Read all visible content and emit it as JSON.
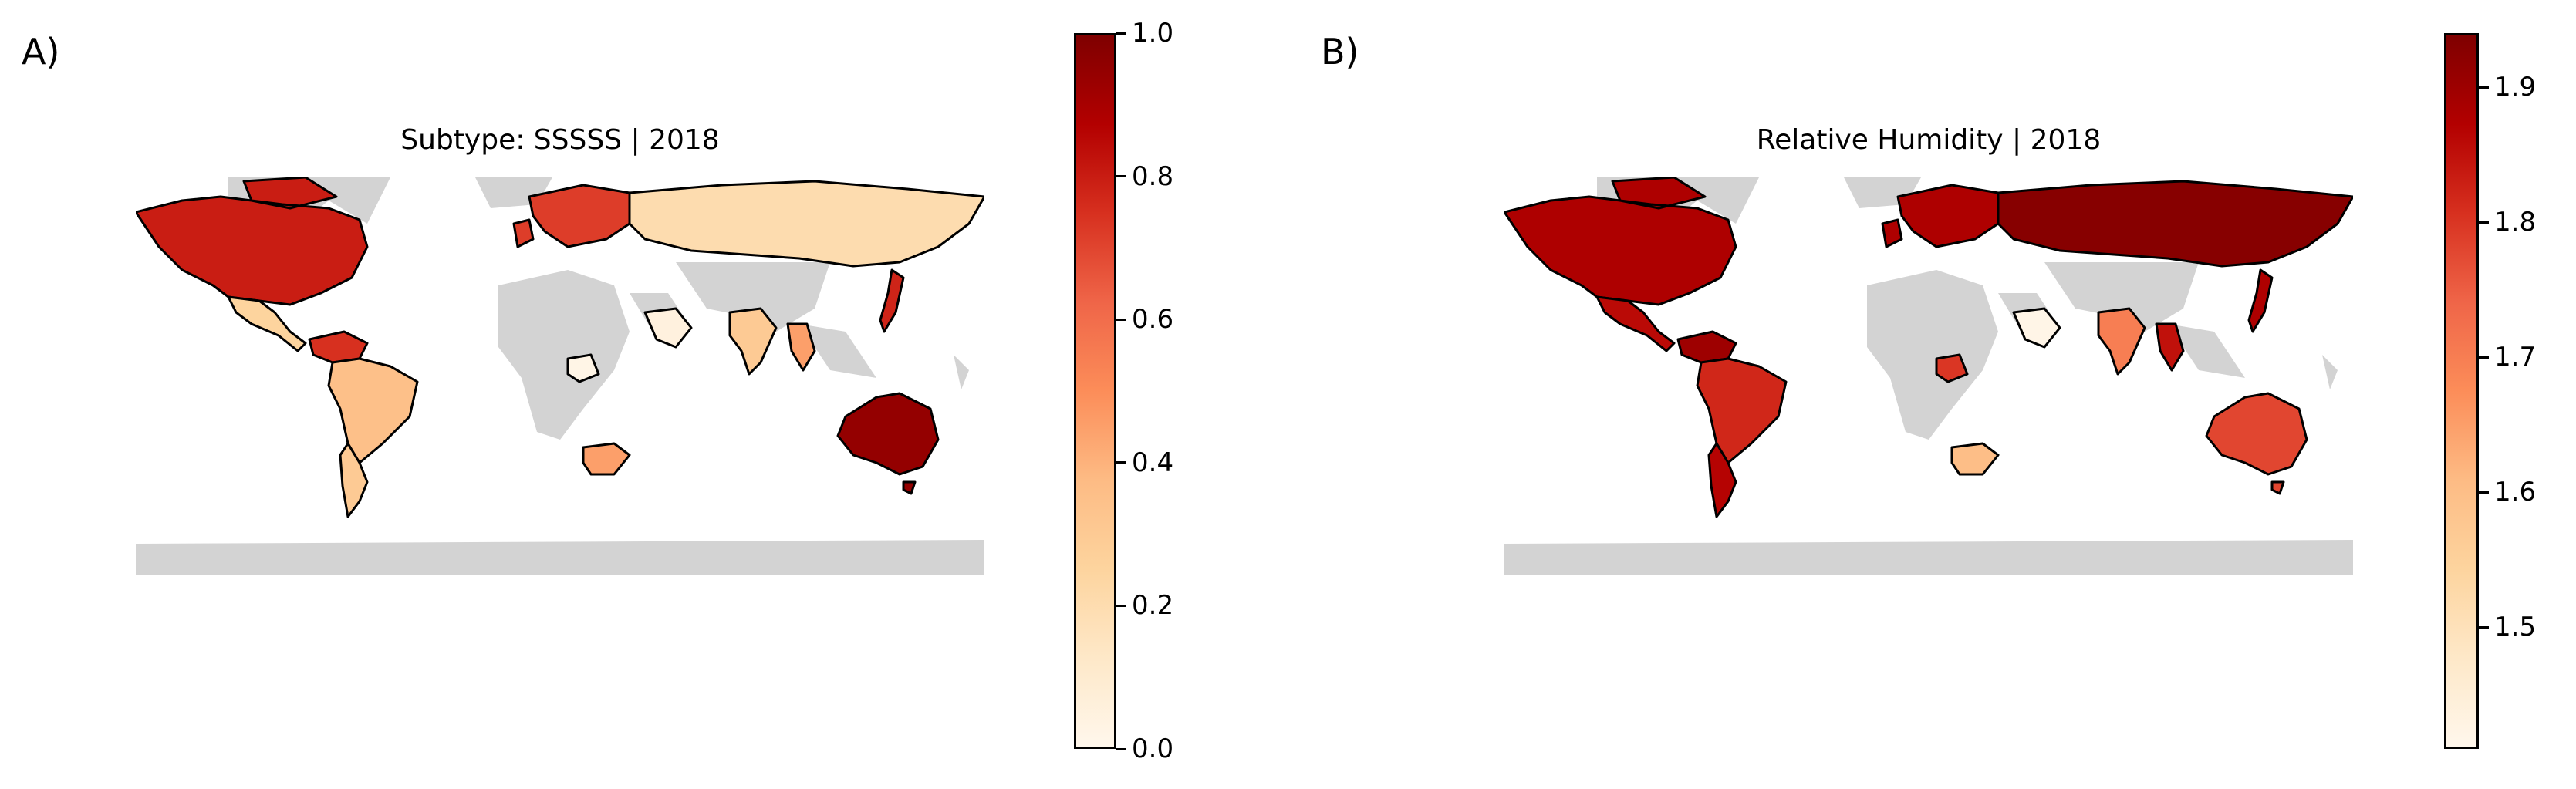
{
  "panels": [
    {
      "letter": "A)",
      "title": "Subtype: SSSSS | 2018",
      "colorbar": {
        "min": 0.0,
        "max": 1.0,
        "ticks": [
          "0.0",
          "0.2",
          "0.4",
          "0.6",
          "0.8",
          "1.0"
        ],
        "tick_values": [
          0.0,
          0.2,
          0.4,
          0.6,
          0.8,
          1.0
        ],
        "colormap": "OrRd"
      },
      "regions": [
        {
          "name": "North America",
          "value": 0.8
        },
        {
          "name": "Mexico & Central America",
          "value": 0.25
        },
        {
          "name": "Northern South America",
          "value": 0.75
        },
        {
          "name": "South America",
          "value": 0.35
        },
        {
          "name": "Southern South America",
          "value": 0.3
        },
        {
          "name": "Europe",
          "value": 0.72
        },
        {
          "name": "Russia",
          "value": 0.2
        },
        {
          "name": "Arabian Peninsula",
          "value": 0.05
        },
        {
          "name": "India",
          "value": 0.3
        },
        {
          "name": "Southeast Asia",
          "value": 0.45
        },
        {
          "name": "Japan",
          "value": 0.78
        },
        {
          "name": "Central Africa",
          "value": 0.02
        },
        {
          "name": "Southern Africa",
          "value": 0.45
        },
        {
          "name": "Australia",
          "value": 0.95
        }
      ]
    },
    {
      "letter": "B)",
      "title": "Relative Humidity | 2018",
      "colorbar": {
        "min": 1.41,
        "max": 1.94,
        "ticks": [
          "1.5",
          "1.6",
          "1.7",
          "1.8",
          "1.9"
        ],
        "tick_values": [
          1.5,
          1.6,
          1.7,
          1.8,
          1.9
        ],
        "colormap": "OrRd"
      },
      "regions": [
        {
          "name": "North America",
          "value": 1.88
        },
        {
          "name": "Mexico & Central America",
          "value": 1.86
        },
        {
          "name": "Northern South America",
          "value": 1.9
        },
        {
          "name": "South America",
          "value": 1.82
        },
        {
          "name": "Southern South America",
          "value": 1.87
        },
        {
          "name": "Europe",
          "value": 1.88
        },
        {
          "name": "Russia",
          "value": 1.93
        },
        {
          "name": "Arabian Peninsula",
          "value": 1.42
        },
        {
          "name": "India",
          "value": 1.7
        },
        {
          "name": "Southeast Asia",
          "value": 1.85
        },
        {
          "name": "Japan",
          "value": 1.88
        },
        {
          "name": "Central Africa",
          "value": 1.8
        },
        {
          "name": "Southern Africa",
          "value": 1.6
        },
        {
          "name": "Australia",
          "value": 1.78
        }
      ]
    }
  ],
  "no_data_color": "#d3d3d3"
}
